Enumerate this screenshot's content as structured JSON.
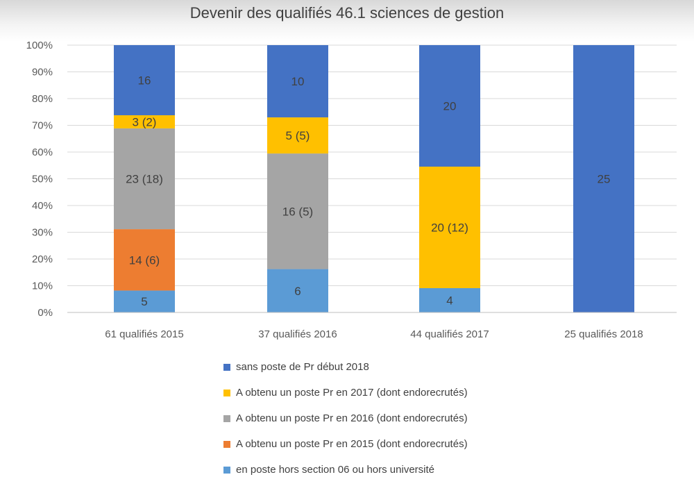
{
  "chart_data": {
    "type": "bar",
    "stacked": "percent",
    "title": "Devenir des qualifiés 46.1 sciences de gestion",
    "categories": [
      "61 qualifiés 2015",
      "37 qualifiés 2016",
      "44 qualifiés 2017",
      "25 qualifiés 2018"
    ],
    "ylim": [
      0,
      100
    ],
    "yticks": [
      "0%",
      "10%",
      "20%",
      "30%",
      "40%",
      "50%",
      "60%",
      "70%",
      "80%",
      "90%",
      "100%"
    ],
    "grid": true,
    "legend_position": "bottom",
    "series": [
      {
        "name": "en poste hors section 06 ou hors université",
        "color": "#5b9bd5",
        "values": [
          5,
          6,
          4,
          0
        ],
        "labels": [
          "5",
          "6",
          "4",
          ""
        ]
      },
      {
        "name": "A obtenu un poste Pr en 2015 (dont endorecrutés)",
        "color": "#ed7d31",
        "values": [
          14,
          0,
          0,
          0
        ],
        "labels": [
          "14 (6)",
          "",
          "",
          ""
        ]
      },
      {
        "name": "A obtenu un poste Pr en 2016 (dont endorecrutés)",
        "color": "#a5a5a5",
        "values": [
          23,
          16,
          0,
          0
        ],
        "labels": [
          "23 (18)",
          "16 (5)",
          "",
          ""
        ]
      },
      {
        "name": "A obtenu un poste Pr en 2017 (dont endorecrutés)",
        "color": "#ffc000",
        "values": [
          3,
          5,
          20,
          0
        ],
        "labels": [
          "3 (2)",
          "5 (5)",
          "20 (12)",
          ""
        ]
      },
      {
        "name": "sans poste de Pr début 2018",
        "color": "#4472c4",
        "values": [
          16,
          10,
          20,
          25
        ],
        "labels": [
          "16",
          "10",
          "20",
          "25"
        ]
      }
    ],
    "legend_order": [
      4,
      3,
      2,
      1,
      0
    ]
  }
}
